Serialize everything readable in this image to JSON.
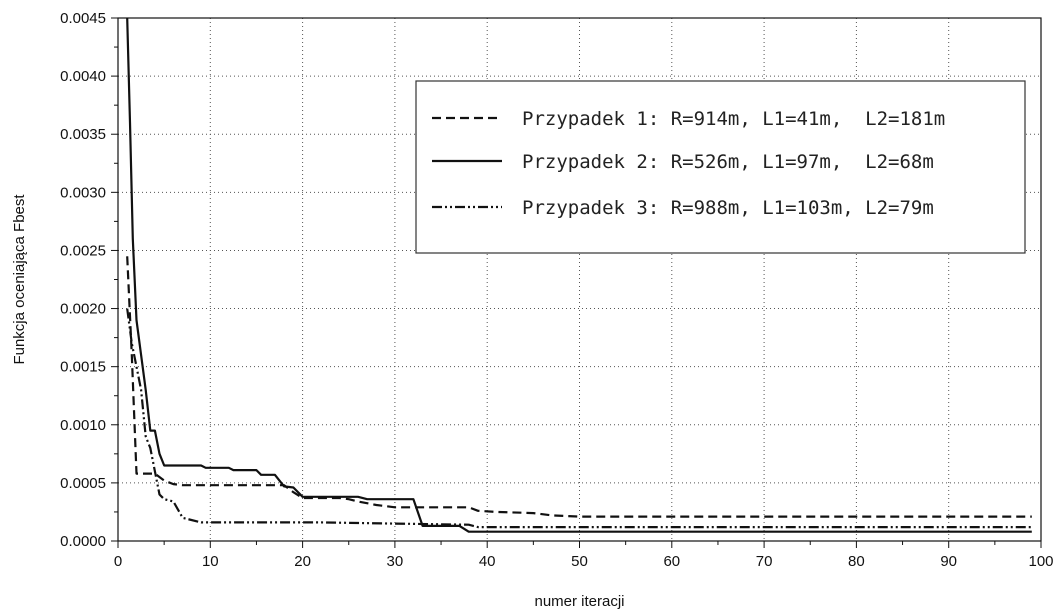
{
  "chart_data": {
    "type": "line",
    "title": "",
    "xlabel": "numer iteracji",
    "ylabel": "Funkcja oceniająca Fbest",
    "xlim": [
      0,
      100
    ],
    "ylim": [
      0,
      0.0045
    ],
    "x_ticks": [
      0,
      10,
      20,
      30,
      40,
      50,
      60,
      70,
      80,
      90,
      100
    ],
    "x_tick_labels": [
      "0",
      "10",
      "20",
      "30",
      "40",
      "50",
      "60",
      "70",
      "80",
      "90",
      "100"
    ],
    "y_ticks": [
      0,
      0.0005,
      0.001,
      0.0015,
      0.002,
      0.0025,
      0.003,
      0.0035,
      0.004,
      0.0045
    ],
    "y_tick_labels": [
      "0.0000",
      "0.0005",
      "0.0010",
      "0.0015",
      "0.0020",
      "0.0025",
      "0.0030",
      "0.0035",
      "0.0040",
      "0.0045"
    ],
    "grid": true,
    "legend_position": "top-right",
    "series": [
      {
        "name": "Przypadek 1: R=914m, L1=41m,  L2=181m",
        "style": "dashed",
        "color": "#111111",
        "points": [
          [
            1,
            0.00245
          ],
          [
            1.5,
            0.0016
          ],
          [
            2,
            0.00058
          ],
          [
            4,
            0.00058
          ],
          [
            5,
            0.00052
          ],
          [
            6,
            0.00049
          ],
          [
            7,
            0.00048
          ],
          [
            18,
            0.00048
          ],
          [
            19,
            0.00042
          ],
          [
            20,
            0.00037
          ],
          [
            24,
            0.00037
          ],
          [
            25,
            0.00036
          ],
          [
            26,
            0.00034
          ],
          [
            28,
            0.00031
          ],
          [
            30,
            0.00029
          ],
          [
            38,
            0.00029
          ],
          [
            39,
            0.00026
          ],
          [
            41,
            0.00025
          ],
          [
            45,
            0.00024
          ],
          [
            47,
            0.00022
          ],
          [
            50,
            0.00021
          ],
          [
            99,
            0.00021
          ]
        ]
      },
      {
        "name": "Przypadek 2: R=526m, L1=97m,  L2=68m",
        "style": "solid",
        "color": "#111111",
        "points": [
          [
            1,
            0.0045
          ],
          [
            1.3,
            0.0036
          ],
          [
            1.6,
            0.0026
          ],
          [
            2,
            0.0019
          ],
          [
            2.5,
            0.0016
          ],
          [
            3,
            0.0013
          ],
          [
            3.5,
            0.00095
          ],
          [
            4,
            0.00095
          ],
          [
            4.5,
            0.00075
          ],
          [
            5,
            0.00065
          ],
          [
            9,
            0.00065
          ],
          [
            9.5,
            0.00063
          ],
          [
            12,
            0.00063
          ],
          [
            12.5,
            0.00061
          ],
          [
            15,
            0.00061
          ],
          [
            15.5,
            0.00057
          ],
          [
            17,
            0.00057
          ],
          [
            18,
            0.00047
          ],
          [
            19,
            0.00046
          ],
          [
            20,
            0.00038
          ],
          [
            23,
            0.00038
          ],
          [
            26,
            0.00038
          ],
          [
            27,
            0.00036
          ],
          [
            32,
            0.00036
          ],
          [
            33,
            0.00013
          ],
          [
            37,
            0.00013
          ],
          [
            38,
            8e-05
          ],
          [
            99,
            8e-05
          ]
        ]
      },
      {
        "name": "Przypadek 3: R=988m, L1=103m, L2=79m",
        "style": "dash-dot-dot",
        "color": "#111111",
        "points": [
          [
            1,
            0.002
          ],
          [
            1.5,
            0.0017
          ],
          [
            2,
            0.0015
          ],
          [
            2.5,
            0.0013
          ],
          [
            3,
            0.0009
          ],
          [
            3.5,
            0.0008
          ],
          [
            4,
            0.0006
          ],
          [
            4.5,
            0.0004
          ],
          [
            5,
            0.00036
          ],
          [
            6,
            0.00034
          ],
          [
            7,
            0.0002
          ],
          [
            9,
            0.00016
          ],
          [
            22,
            0.00016
          ],
          [
            30,
            0.00015
          ],
          [
            38,
            0.00014
          ],
          [
            39,
            0.00012
          ],
          [
            99,
            0.00012
          ]
        ]
      }
    ]
  }
}
